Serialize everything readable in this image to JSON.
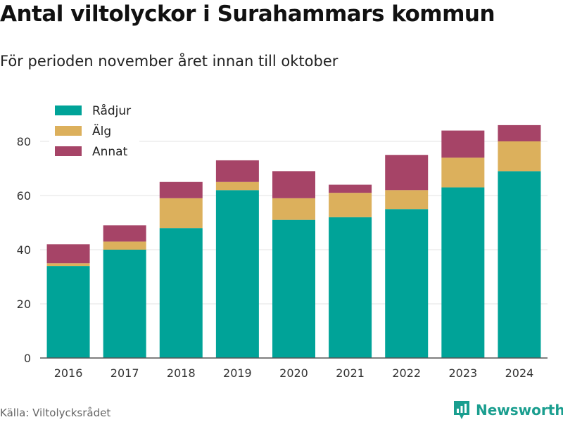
{
  "page": {
    "title": "Antal viltolyckor i Surahammars kommun",
    "subtitle": "För perioden november året innan till oktober",
    "source": "Källa: Viltolycksrådet",
    "brand": "Newsworthy",
    "brand_color": "#1a9e8f"
  },
  "chart_data": {
    "type": "bar",
    "stacked": true,
    "title": "Antal viltolyckor i Surahammars kommun",
    "subtitle": "För perioden november året innan till oktober",
    "xlabel": "",
    "ylabel": "",
    "categories": [
      "2016",
      "2017",
      "2018",
      "2019",
      "2020",
      "2021",
      "2022",
      "2023",
      "2024"
    ],
    "ylim": [
      0,
      90
    ],
    "yticks": [
      0,
      20,
      40,
      60,
      80
    ],
    "grid": true,
    "legend_position": "top-left",
    "series": [
      {
        "name": "Rådjur",
        "color": "#00a398",
        "values": [
          34,
          40,
          48,
          62,
          51,
          52,
          55,
          63,
          69
        ]
      },
      {
        "name": "Älg",
        "color": "#dcb05c",
        "values": [
          1,
          3,
          11,
          3,
          8,
          9,
          7,
          11,
          11
        ]
      },
      {
        "name": "Annat",
        "color": "#a64467",
        "values": [
          7,
          6,
          6,
          8,
          10,
          3,
          13,
          10,
          6
        ]
      }
    ]
  }
}
